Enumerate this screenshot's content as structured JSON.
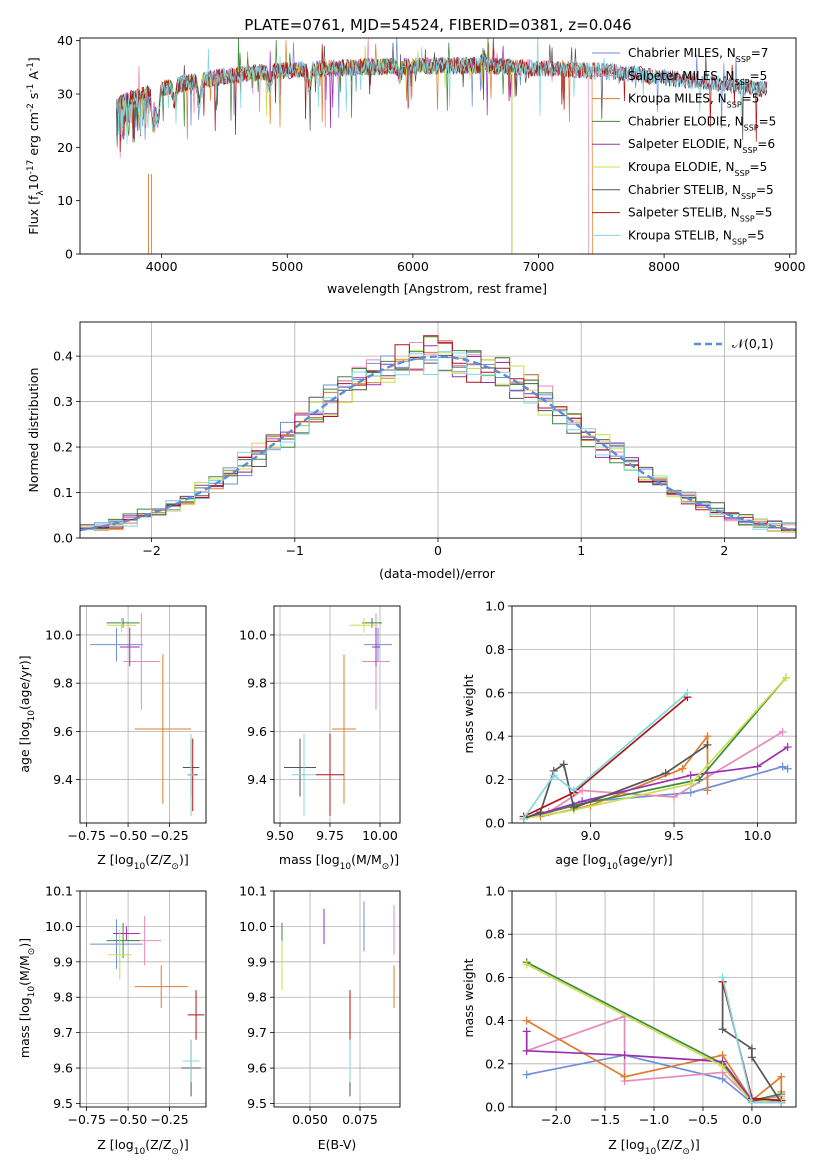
{
  "chart_data": [
    {
      "id": "spectrum",
      "type": "line",
      "title": "PLATE=0761, MJD=54524, FIBERID=0381, z=0.046",
      "xlabel": "wavelength [Angstrom, rest frame]",
      "ylabel": "Flux [f$_\\lambda$10$^{-17}$ erg cm$^{-2}$ s$^{-1}$ A$^{-1}$]",
      "xlim": [
        3350,
        9050
      ],
      "ylim": [
        0,
        40.5
      ],
      "xticks": [
        4000,
        5000,
        6000,
        7000,
        8000,
        9000
      ],
      "yticks": [
        0,
        10,
        20,
        30,
        40
      ],
      "legend_position": "upper-right",
      "series": [
        {
          "name": "Chabrier MILES, N$_{SSP}$=7",
          "color": "#6f8fd8",
          "x_range": [
            3640,
            8820
          ]
        },
        {
          "name": "Salpeter MILES, N$_{SSP}$=5",
          "color": "#e88ab8",
          "x_range": [
            3640,
            7400
          ]
        },
        {
          "name": "Kroupa MILES, N$_{SSP}$=5",
          "color": "#e07c2c",
          "x_range": [
            3640,
            7430
          ]
        },
        {
          "name": "Chabrier ELODIE, N$_{SSP}$=5",
          "color": "#3d8a3d",
          "x_range": [
            3640,
            6790
          ]
        },
        {
          "name": "Salpeter ELODIE, N$_{SSP}$=6",
          "color": "#9b30b0",
          "x_range": [
            3640,
            6790
          ]
        },
        {
          "name": "Kroupa ELODIE, N$_{SSP}$=5",
          "color": "#c8e050",
          "x_range": [
            3640,
            6790
          ]
        },
        {
          "name": "Chabrier STELIB, N$_{SSP}$=5",
          "color": "#555555",
          "x_range": [
            3640,
            8820
          ]
        },
        {
          "name": "Salpeter STELIB, N$_{SSP}$=5",
          "color": "#b01515",
          "x_range": [
            3640,
            8820
          ]
        },
        {
          "name": "Kroupa STELIB, N$_{SSP}$=5",
          "color": "#7fd8e0",
          "x_range": [
            3640,
            8820
          ]
        }
      ]
    },
    {
      "id": "residuals",
      "type": "line",
      "xlabel": "(data-model)/error",
      "ylabel": "Normed distribution",
      "xlim": [
        -2.5,
        2.5
      ],
      "ylim": [
        0,
        0.475
      ],
      "xticks": [
        -2,
        -1,
        0,
        1,
        2
      ],
      "yticks": [
        0.0,
        0.1,
        0.2,
        0.3,
        0.4
      ],
      "grid": true,
      "legend_position": "upper-right",
      "reference": {
        "name": "$\\mathcal{N}(0,1)$",
        "color": "#5b8bd9",
        "style": "dashed"
      }
    },
    {
      "id": "age-vs-Z",
      "type": "scatter",
      "xlabel": "Z [log$_{10}$(Z/Z$_\\odot$)]",
      "ylabel": "age  [log$_{10}$(age/yr)]",
      "xlim": [
        -0.79,
        -0.03
      ],
      "ylim": [
        9.22,
        10.12
      ],
      "xticks": [
        -0.75,
        -0.5,
        -0.25
      ],
      "yticks": [
        9.4,
        9.6,
        9.8,
        10.0
      ],
      "grid": true,
      "points": [
        {
          "color": "#6f8fd8",
          "x": -0.57,
          "xerr": 0.16,
          "y": 9.96,
          "yerr": 0.07
        },
        {
          "color": "#e88ab8",
          "x": -0.42,
          "xerr": 0.11,
          "y": 9.89,
          "yerr": 0.2
        },
        {
          "color": "#e07c2c",
          "x": -0.29,
          "xerr": 0.17,
          "y": 9.61,
          "yerr": 0.31
        },
        {
          "color": "#3d8a3d",
          "x": -0.53,
          "xerr": 0.1,
          "y": 10.05,
          "yerr": 0.02
        },
        {
          "color": "#9b30b0",
          "x": -0.49,
          "xerr": 0.06,
          "y": 9.95,
          "yerr": 0.08
        },
        {
          "color": "#c8e050",
          "x": -0.54,
          "xerr": 0.09,
          "y": 10.04,
          "yerr": 0.03
        },
        {
          "color": "#555555",
          "x": -0.12,
          "xerr": 0.05,
          "y": 9.45,
          "yerr": 0.12
        },
        {
          "color": "#b01515",
          "x": -0.11,
          "xerr": 0.03,
          "y": 9.42,
          "yerr": 0.15
        },
        {
          "color": "#7fd8e0",
          "x": -0.12,
          "xerr": 0.02,
          "y": 9.42,
          "yerr": 0.17
        }
      ]
    },
    {
      "id": "age-vs-mass",
      "type": "scatter",
      "xlabel": "mass [log$_{10}$(M/M$_\\odot$)]",
      "ylabel": "",
      "xlim": [
        9.47,
        10.1
      ],
      "ylim": [
        9.22,
        10.12
      ],
      "xticks": [
        9.5,
        9.75,
        10.0
      ],
      "yticks": [
        9.4,
        9.6,
        9.8,
        10.0
      ],
      "grid": true,
      "points": [
        {
          "color": "#6f8fd8",
          "x": 9.99,
          "xerr": 0.07,
          "y": 9.96,
          "yerr": 0.07
        },
        {
          "color": "#e88ab8",
          "x": 9.98,
          "xerr": 0.07,
          "y": 9.89,
          "yerr": 0.2
        },
        {
          "color": "#e07c2c",
          "x": 9.82,
          "xerr": 0.06,
          "y": 9.61,
          "yerr": 0.31
        },
        {
          "color": "#3d8a3d",
          "x": 9.96,
          "xerr": 0.05,
          "y": 10.05,
          "yerr": 0.02
        },
        {
          "color": "#9b30b0",
          "x": 9.98,
          "xerr": 0.02,
          "y": 9.95,
          "yerr": 0.08
        },
        {
          "color": "#c8e050",
          "x": 9.92,
          "xerr": 0.07,
          "y": 10.04,
          "yerr": 0.03
        },
        {
          "color": "#555555",
          "x": 9.6,
          "xerr": 0.08,
          "y": 9.45,
          "yerr": 0.12
        },
        {
          "color": "#b01515",
          "x": 9.75,
          "xerr": 0.07,
          "y": 9.42,
          "yerr": 0.17
        },
        {
          "color": "#7fd8e0",
          "x": 9.62,
          "xerr": 0.06,
          "y": 9.42,
          "yerr": 0.17
        }
      ]
    },
    {
      "id": "mass-weight-vs-age",
      "type": "line",
      "xlabel": "age  [log$_{10}$(age/yr)]",
      "ylabel": "mass weight",
      "xlim": [
        8.53,
        10.23
      ],
      "ylim": [
        0,
        1.0
      ],
      "xticks": [
        9.0,
        9.5,
        10.0
      ],
      "yticks": [
        0.0,
        0.2,
        0.4,
        0.6,
        0.8,
        1.0
      ],
      "grid": true,
      "series": [
        {
          "color": "#6f8fd8",
          "x": [
            8.6,
            9.0,
            9.6,
            10.15,
            10.18
          ],
          "y": [
            0.02,
            0.1,
            0.14,
            0.26,
            0.25
          ]
        },
        {
          "color": "#e88ab8",
          "x": [
            8.75,
            8.95,
            9.5,
            10.15
          ],
          "y": [
            0.05,
            0.15,
            0.12,
            0.42
          ]
        },
        {
          "color": "#e07c2c",
          "x": [
            8.7,
            9.0,
            9.55,
            9.7,
            9.7
          ],
          "y": [
            0.03,
            0.08,
            0.25,
            0.4,
            0.15
          ]
        },
        {
          "color": "#3d8a3d",
          "x": [
            8.6,
            8.9,
            9.65,
            10.17
          ],
          "y": [
            0.02,
            0.08,
            0.2,
            0.67
          ]
        },
        {
          "color": "#9b30b0",
          "x": [
            8.6,
            8.95,
            9.6,
            10.0,
            10.18
          ],
          "y": [
            0.02,
            0.1,
            0.22,
            0.26,
            0.35
          ]
        },
        {
          "color": "#c8e050",
          "x": [
            8.6,
            8.9,
            9.6,
            10.17
          ],
          "y": [
            0.02,
            0.06,
            0.18,
            0.67
          ]
        },
        {
          "color": "#555555",
          "x": [
            8.6,
            8.7,
            8.78,
            8.84,
            8.9,
            9.45,
            9.7
          ],
          "y": [
            0.02,
            0.05,
            0.24,
            0.27,
            0.07,
            0.23,
            0.36
          ]
        },
        {
          "color": "#b01515",
          "x": [
            8.6,
            8.9,
            9.58
          ],
          "y": [
            0.03,
            0.14,
            0.58
          ]
        },
        {
          "color": "#7fd8e0",
          "x": [
            8.6,
            8.78,
            8.9,
            9.58
          ],
          "y": [
            0.02,
            0.22,
            0.15,
            0.6
          ]
        }
      ]
    },
    {
      "id": "mass-vs-Z",
      "type": "scatter",
      "xlabel": "Z [log$_{10}$(Z/Z$_\\odot$)]",
      "ylabel": "mass [log$_{10}$(M/M$_\\odot$)]",
      "xlim": [
        -0.79,
        -0.03
      ],
      "ylim": [
        9.49,
        10.1
      ],
      "xticks": [
        -0.75,
        -0.5,
        -0.25
      ],
      "yticks": [
        9.5,
        9.6,
        9.7,
        9.8,
        9.9,
        10.0,
        10.1
      ],
      "grid": true,
      "points": [
        {
          "color": "#6f8fd8",
          "x": -0.57,
          "xerr": 0.16,
          "y": 9.95,
          "yerr": 0.07
        },
        {
          "color": "#e88ab8",
          "x": -0.4,
          "xerr": 0.1,
          "y": 9.96,
          "yerr": 0.07
        },
        {
          "color": "#e07c2c",
          "x": -0.3,
          "xerr": 0.16,
          "y": 9.83,
          "yerr": 0.06
        },
        {
          "color": "#3d8a3d",
          "x": -0.53,
          "xerr": 0.1,
          "y": 9.96,
          "yerr": 0.05
        },
        {
          "color": "#9b30b0",
          "x": -0.51,
          "xerr": 0.08,
          "y": 9.98,
          "yerr": 0.02
        },
        {
          "color": "#c8e050",
          "x": -0.55,
          "xerr": 0.07,
          "y": 9.92,
          "yerr": 0.07
        },
        {
          "color": "#555555",
          "x": -0.12,
          "xerr": 0.06,
          "y": 9.6,
          "yerr": 0.08
        },
        {
          "color": "#b01515",
          "x": -0.09,
          "xerr": 0.05,
          "y": 9.75,
          "yerr": 0.07
        },
        {
          "color": "#7fd8e0",
          "x": -0.12,
          "xerr": 0.05,
          "y": 9.62,
          "yerr": 0.06
        }
      ]
    },
    {
      "id": "mass-vs-EBV",
      "type": "scatter",
      "xlabel": "E(B-V)",
      "ylabel": "",
      "xlim": [
        0.032,
        0.095
      ],
      "ylim": [
        9.49,
        10.1
      ],
      "xticks": [
        0.05,
        0.075
      ],
      "yticks": [
        9.5,
        9.6,
        9.7,
        9.8,
        9.9,
        10.0,
        10.1
      ],
      "grid": true,
      "points": [
        {
          "color": "#6f8fd8",
          "x": 0.077,
          "y": 10.0,
          "yerr": 0.07
        },
        {
          "color": "#e88ab8",
          "x": 0.092,
          "y": 9.99,
          "yerr": 0.07
        },
        {
          "color": "#e07c2c",
          "x": 0.092,
          "y": 9.83,
          "yerr": 0.06
        },
        {
          "color": "#3d8a3d",
          "x": 0.036,
          "y": 9.96,
          "yerr": 0.05
        },
        {
          "color": "#9b30b0",
          "x": 0.057,
          "y": 10.0,
          "yerr": 0.05
        },
        {
          "color": "#c8e050",
          "x": 0.036,
          "y": 9.89,
          "yerr": 0.07
        },
        {
          "color": "#555555",
          "x": 0.07,
          "y": 9.6,
          "yerr": 0.08
        },
        {
          "color": "#b01515",
          "x": 0.07,
          "y": 9.75,
          "yerr": 0.07
        },
        {
          "color": "#7fd8e0",
          "x": 0.07,
          "y": 9.62,
          "yerr": 0.06
        }
      ]
    },
    {
      "id": "mass-weight-vs-Z",
      "type": "line",
      "xlabel": "Z [log$_{10}$(Z/Z$_\\odot$)]",
      "ylabel": "mass weight",
      "xlim": [
        -2.45,
        0.45
      ],
      "ylim": [
        0,
        1.0
      ],
      "xticks": [
        -2.0,
        -1.5,
        -1.0,
        -0.5,
        0.0
      ],
      "yticks": [
        0.0,
        0.2,
        0.4,
        0.6,
        0.8,
        1.0
      ],
      "grid": true,
      "series": [
        {
          "color": "#6f8fd8",
          "x": [
            -2.3,
            -1.3,
            -0.3,
            0.0,
            0.3
          ],
          "y": [
            0.15,
            0.24,
            0.13,
            0.02,
            0.02
          ]
        },
        {
          "color": "#e88ab8",
          "x": [
            -2.3,
            -1.3,
            -1.3,
            -0.3,
            0.0,
            0.3
          ],
          "y": [
            0.26,
            0.42,
            0.12,
            0.16,
            0.03,
            0.05
          ]
        },
        {
          "color": "#e07c2c",
          "x": [
            -2.3,
            -1.3,
            -0.3,
            0.0,
            0.3,
            0.3
          ],
          "y": [
            0.4,
            0.14,
            0.24,
            0.03,
            0.14,
            0.07
          ]
        },
        {
          "color": "#3d8a3d",
          "x": [
            -2.3,
            -0.3,
            0.0,
            0.3
          ],
          "y": [
            0.67,
            0.2,
            0.03,
            0.06
          ]
        },
        {
          "color": "#9b30b0",
          "x": [
            -2.3,
            -2.3,
            -1.3,
            -0.3,
            0.0,
            0.3
          ],
          "y": [
            0.35,
            0.26,
            0.24,
            0.21,
            0.03,
            0.03
          ]
        },
        {
          "color": "#c8e050",
          "x": [
            -2.3,
            -0.3,
            0.0,
            0.3
          ],
          "y": [
            0.66,
            0.19,
            0.02,
            0.04
          ]
        },
        {
          "color": "#555555",
          "x": [
            -0.3,
            -0.3,
            0.0,
            0.0,
            0.3
          ],
          "y": [
            0.58,
            0.36,
            0.27,
            0.23,
            0.02
          ]
        },
        {
          "color": "#b01515",
          "x": [
            -0.3,
            0.0,
            0.3
          ],
          "y": [
            0.58,
            0.04,
            0.03
          ]
        },
        {
          "color": "#7fd8e0",
          "x": [
            -0.3,
            0.0,
            0.3
          ],
          "y": [
            0.6,
            0.02,
            0.02
          ]
        }
      ]
    }
  ]
}
